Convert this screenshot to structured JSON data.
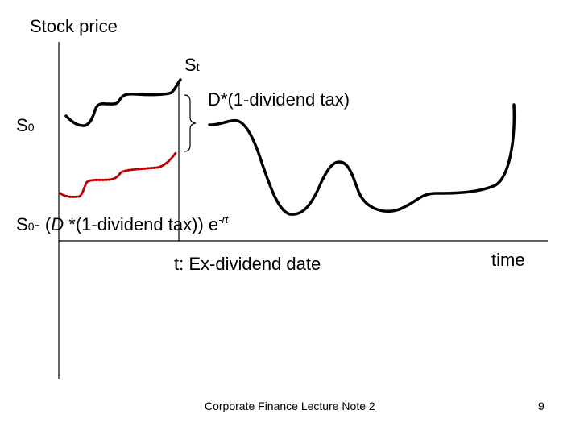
{
  "slide": {
    "y_axis_label": "Stock price",
    "x_axis_label": "time",
    "st_label": {
      "main": "S",
      "sub": "t"
    },
    "s0_label": {
      "main": "S",
      "sub": "0"
    },
    "dividend_label": "D*(1-dividend tax)",
    "pv_label": {
      "s": "S",
      "sub": "0",
      "mid": "- (",
      "d": "D",
      "rest": " *(1-dividend tax)) e",
      "sup": "-rt"
    },
    "ex_div_label": "t: Ex-dividend date",
    "footer_text": "Corporate Finance Lecture Note 2",
    "page_number": "9",
    "colors": {
      "price_path": "#000000",
      "adjusted_path": "#c00000",
      "axes": "#000000"
    }
  }
}
